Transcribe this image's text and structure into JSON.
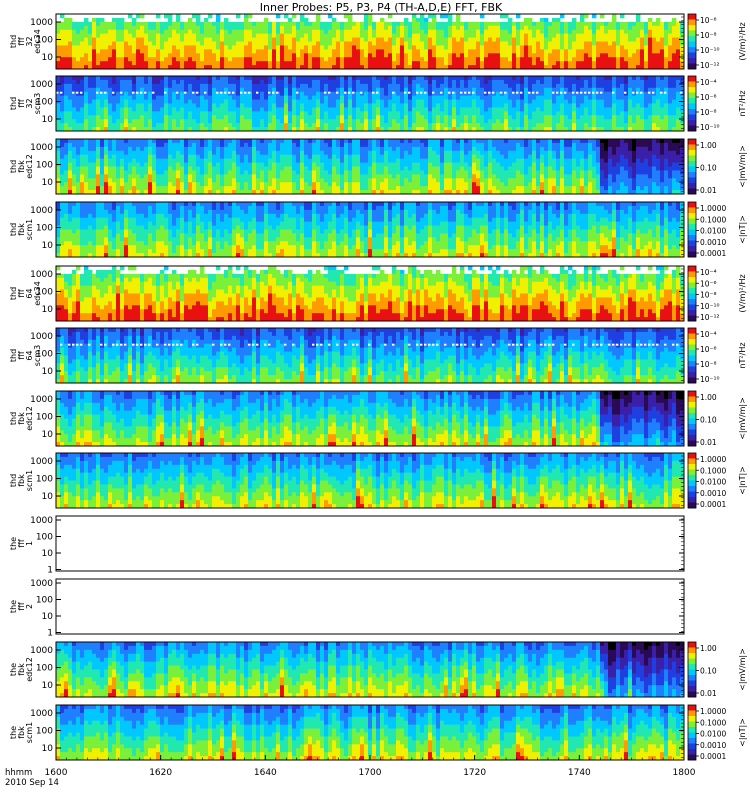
{
  "title": "Inner Probes: P5, P3, P4 (TH-A,D,E) FFT, FBK",
  "time_axis": {
    "corner_label_1": "hhmm",
    "corner_label_2": "2010 Sep 14",
    "ticks": [
      "1600",
      "1620",
      "1640",
      "1700",
      "1720",
      "1740",
      "1800"
    ]
  },
  "colors": {
    "scale": [
      "#000000",
      "#2a0a55",
      "#3a20a8",
      "#1f3fe0",
      "#1e7fff",
      "#00c8ff",
      "#20e8b0",
      "#7af03a",
      "#f0f000",
      "#ff9a00",
      "#e81010"
    ]
  },
  "chart_data": [
    {
      "type": "heatmap",
      "id": "p1",
      "ylabel": [
        "thd",
        "fff",
        "32",
        "edc34"
      ],
      "yticks": [
        "1000",
        "100",
        "10"
      ],
      "colorbar": {
        "ticks": [
          "10⁻⁶",
          "10⁻⁸",
          "10⁻¹⁰",
          "10⁻¹²"
        ],
        "label": "(V/m)²/Hz"
      },
      "has_data": true,
      "base": 6,
      "white_top": true
    },
    {
      "type": "heatmap",
      "id": "p2",
      "ylabel": [
        "thd",
        "fff",
        "32",
        "scm3"
      ],
      "yticks": [
        "1000",
        "100",
        "10"
      ],
      "colorbar": {
        "ticks": [
          "10⁻⁴",
          "10⁻⁶",
          "10⁻⁸",
          "10⁻¹⁰"
        ],
        "label": "nT²/Hz"
      },
      "has_data": true,
      "base": 3,
      "white_band": true
    },
    {
      "type": "heatmap",
      "id": "p3",
      "ylabel": [
        "thd",
        "fbk",
        "edc12"
      ],
      "yticks": [
        "1000",
        "100",
        "10"
      ],
      "colorbar": {
        "ticks": [
          "1.00",
          "0.10",
          "0.01"
        ],
        "label": "<|mV/m|>"
      },
      "has_data": true,
      "base": 4,
      "dark_end": true
    },
    {
      "type": "heatmap",
      "id": "p4",
      "ylabel": [
        "thd",
        "fbk",
        "scm1"
      ],
      "yticks": [
        "1000",
        "100",
        "10"
      ],
      "colorbar": {
        "ticks": [
          "1.0000",
          "0.1000",
          "0.0100",
          "0.0010",
          "0.0001"
        ],
        "label": "<|nT|>"
      },
      "has_data": true,
      "base": 4
    },
    {
      "type": "heatmap",
      "id": "p5",
      "ylabel": [
        "thd",
        "fff",
        "64",
        "edc34"
      ],
      "yticks": [
        "1000",
        "100",
        "10"
      ],
      "colorbar": {
        "ticks": [
          "10⁻⁴",
          "10⁻⁶",
          "10⁻⁸",
          "10⁻¹⁰",
          "10⁻¹²"
        ],
        "label": "(V/m)²/Hz"
      },
      "has_data": true,
      "base": 6,
      "white_top": true
    },
    {
      "type": "heatmap",
      "id": "p6",
      "ylabel": [
        "thd",
        "fff",
        "64",
        "scm3"
      ],
      "yticks": [
        "1000",
        "100",
        "10"
      ],
      "colorbar": {
        "ticks": [
          "10⁻⁴",
          "10⁻⁶",
          "10⁻⁸",
          "10⁻¹⁰"
        ],
        "label": "nT²/Hz"
      },
      "has_data": true,
      "base": 3,
      "white_band": true
    },
    {
      "type": "heatmap",
      "id": "p7",
      "ylabel": [
        "thd",
        "fbk",
        "edc12"
      ],
      "yticks": [
        "1000",
        "100",
        "10"
      ],
      "colorbar": {
        "ticks": [
          "1.00",
          "0.10",
          "0.01"
        ],
        "label": "<|mV/m|>"
      },
      "has_data": true,
      "base": 4,
      "dark_end": true
    },
    {
      "type": "heatmap",
      "id": "p8",
      "ylabel": [
        "thd",
        "fbk",
        "scm1"
      ],
      "yticks": [
        "1000",
        "100",
        "10"
      ],
      "colorbar": {
        "ticks": [
          "1.0000",
          "0.1000",
          "0.0100",
          "0.0010",
          "0.0001"
        ],
        "label": "<|nT|>"
      },
      "has_data": true,
      "base": 4
    },
    {
      "type": "heatmap",
      "id": "p9",
      "ylabel": [
        "the",
        "fff",
        "1"
      ],
      "yticks": [
        "1000",
        "100",
        "10",
        "1"
      ],
      "colorbar": null,
      "has_data": false
    },
    {
      "type": "heatmap",
      "id": "p10",
      "ylabel": [
        "the",
        "fff",
        "2"
      ],
      "yticks": [
        "1000",
        "100",
        "10",
        "1"
      ],
      "colorbar": null,
      "has_data": false
    },
    {
      "type": "heatmap",
      "id": "p11",
      "ylabel": [
        "the",
        "fbk",
        "edc12"
      ],
      "yticks": [
        "1000",
        "100",
        "10"
      ],
      "colorbar": {
        "ticks": [
          "1.00",
          "0.10",
          "0.01"
        ],
        "label": "<|mV/m|>"
      },
      "has_data": true,
      "base": 4,
      "dark_end": true
    },
    {
      "type": "heatmap",
      "id": "p12",
      "ylabel": [
        "the",
        "fbk",
        "scm1"
      ],
      "yticks": [
        "1000",
        "100",
        "10"
      ],
      "colorbar": {
        "ticks": [
          "1.0000",
          "0.1000",
          "0.0100",
          "0.0010",
          "0.0001"
        ],
        "label": "<|nT|>"
      },
      "has_data": true,
      "base": 4
    }
  ]
}
